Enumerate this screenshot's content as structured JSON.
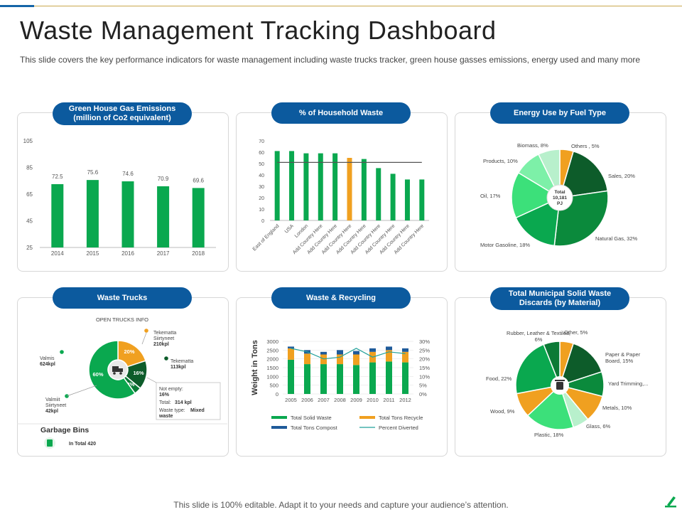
{
  "page": {
    "title": "Waste Management Tracking Dashboard",
    "subtitle": "This slide covers the key performance indicators for waste management including waste trucks tracker, green house gasses emissions, energy used and many more",
    "footer": "This slide is 100% editable. Adapt it to your needs and capture your audience’s attention."
  },
  "colors": {
    "green": "#0aa84f",
    "orange": "#f0a020",
    "darkgreen": "#0d5c2a",
    "blue": "#0c5a9e",
    "lightgreen": "#2ecc71",
    "palegreen": "#b8f0cc"
  },
  "panels": {
    "ghg": {
      "title": "Green House Gas Emissions\n(million of Co2 equivalent)"
    },
    "household": {
      "title": "% of Household Waste"
    },
    "energy": {
      "title": "Energy Use by Fuel Type"
    },
    "trucks": {
      "title": "Waste Trucks"
    },
    "recycling": {
      "title": "Waste & Recycling"
    },
    "msw": {
      "title": "Total Municipal Solid Waste\nDiscards (by Material)"
    }
  },
  "chart_data": [
    {
      "id": "ghg",
      "type": "bar",
      "categories": [
        "2014",
        "2015",
        "2016",
        "2017",
        "2018"
      ],
      "values": [
        72.5,
        75.6,
        74.6,
        70.9,
        69.6
      ],
      "ylim": [
        25,
        105
      ],
      "yticks": [
        25,
        45,
        65,
        85,
        105
      ],
      "data_labels": true,
      "grid": false,
      "color": "#0aa84f"
    },
    {
      "id": "household",
      "type": "bar",
      "categories": [
        "East of England",
        "USA",
        "London",
        "Add Country Here",
        "Add Country Here",
        "Add Country Here",
        "Add Country Here",
        "Add Country Here",
        "Add Country Here",
        "Add Country Here",
        "Add Country Here"
      ],
      "values": [
        61,
        61,
        59,
        59,
        59,
        55,
        54,
        46,
        41,
        36,
        36
      ],
      "highlight_index": 5,
      "reference_line": 51,
      "ylim": [
        0,
        70
      ],
      "yticks": [
        0,
        10,
        20,
        30,
        40,
        50,
        60,
        70
      ],
      "grid": false
    },
    {
      "id": "energy",
      "type": "pie",
      "center_label": [
        "Total",
        "10,181",
        "PJ"
      ],
      "slices": [
        {
          "label": "Others , 5%",
          "value": 5,
          "color": "#f0a020"
        },
        {
          "label": "Sales, 20%",
          "value": 20,
          "color": "#0d5c2a"
        },
        {
          "label": "Natural Gas, 32%",
          "value": 32,
          "color": "#0b8a3c"
        },
        {
          "label": "Motor Gasoline, 18%",
          "value": 18,
          "color": "#0aa84f"
        },
        {
          "label": "Oil, 17%",
          "value": 17,
          "color": "#3ce07a"
        },
        {
          "label": "Products, 10%",
          "value": 10,
          "color": "#7df0a8"
        },
        {
          "label": "Biomass, 8%",
          "value": 8,
          "color": "#b8f0cc"
        }
      ]
    },
    {
      "id": "trucks",
      "type": "pie",
      "header": "OPEN TRUCKS INFO",
      "slices": [
        {
          "label": "20%",
          "value": 20,
          "color": "#f0a020"
        },
        {
          "label": "16%",
          "value": 16,
          "color": "#0d5c2a"
        },
        {
          "label": "4%",
          "value": 4,
          "color": "#0b7a36"
        },
        {
          "label": "60%",
          "value": 60,
          "color": "#0aa84f"
        }
      ],
      "callouts": [
        {
          "name": "Tekematta\nSiirtyneet",
          "value": "210kpl"
        },
        {
          "name": "Tekematta",
          "value": "113kpl"
        },
        {
          "name": "Valmis",
          "value": "624kpl"
        },
        {
          "name": "Valmiit\nSiirtyneet",
          "value": "42kpl"
        }
      ],
      "info_box": {
        "l1": "Not empty:",
        "v1": "16%",
        "l2": "Total:",
        "v2": "314 kpl",
        "l3": "Waste type:",
        "v3": "Mixed waste"
      },
      "bins": {
        "title": "Garbage Bins",
        "total": "In Total 420"
      }
    },
    {
      "id": "recycling",
      "type": "bar",
      "stacked": true,
      "categories": [
        "2005",
        "2006",
        "2007",
        "2008",
        "2009",
        "2010",
        "2011",
        "2012"
      ],
      "ylabel": "Weight in Tons",
      "ylim": [
        0,
        3000
      ],
      "yticks": [
        0,
        500,
        1000,
        1500,
        2000,
        2500,
        3000
      ],
      "y2lim": [
        0,
        30
      ],
      "y2ticks": [
        "0%",
        "5%",
        "10%",
        "15%",
        "20%",
        "25%",
        "30%"
      ],
      "series": [
        {
          "name": "Total Solid Waste",
          "values": [
            1950,
            1700,
            1700,
            1700,
            1650,
            1800,
            1850,
            1800
          ],
          "color": "#0aa84f"
        },
        {
          "name": "Total Tons Recycle",
          "values": [
            650,
            600,
            550,
            550,
            600,
            600,
            650,
            600
          ],
          "color": "#f0a020"
        },
        {
          "name": "Total Tons Compost",
          "values": [
            100,
            200,
            150,
            250,
            200,
            200,
            200,
            200
          ],
          "color": "#1e5a99"
        },
        {
          "name": "Percent Diverted",
          "type": "line",
          "values": [
            26,
            24,
            20,
            21,
            26,
            21,
            24,
            23
          ],
          "color": "#21a09a"
        }
      ]
    },
    {
      "id": "msw",
      "type": "pie",
      "slices": [
        {
          "label": "Other, 5%",
          "value": 5,
          "color": "#f0a020"
        },
        {
          "label": "Paper & Paper\nBoard, 15%",
          "value": 15,
          "color": "#0d5c2a"
        },
        {
          "label": "Yard Trimming,...",
          "value": 9,
          "color": "#0b8a3c"
        },
        {
          "label": "Metals, 10%",
          "value": 10,
          "color": "#f0a020"
        },
        {
          "label": "Glass, 6%",
          "value": 6,
          "color": "#b8f0cc"
        },
        {
          "label": "Plastic, 18%",
          "value": 18,
          "color": "#3ce07a"
        },
        {
          "label": "Wood, 9%",
          "value": 9,
          "color": "#f0a020"
        },
        {
          "label": "Food, 22%",
          "value": 22,
          "color": "#0aa84f"
        },
        {
          "label": "Rubber, Leather & Textiles,\n6%",
          "value": 6,
          "color": "#0b7a36"
        }
      ]
    }
  ]
}
